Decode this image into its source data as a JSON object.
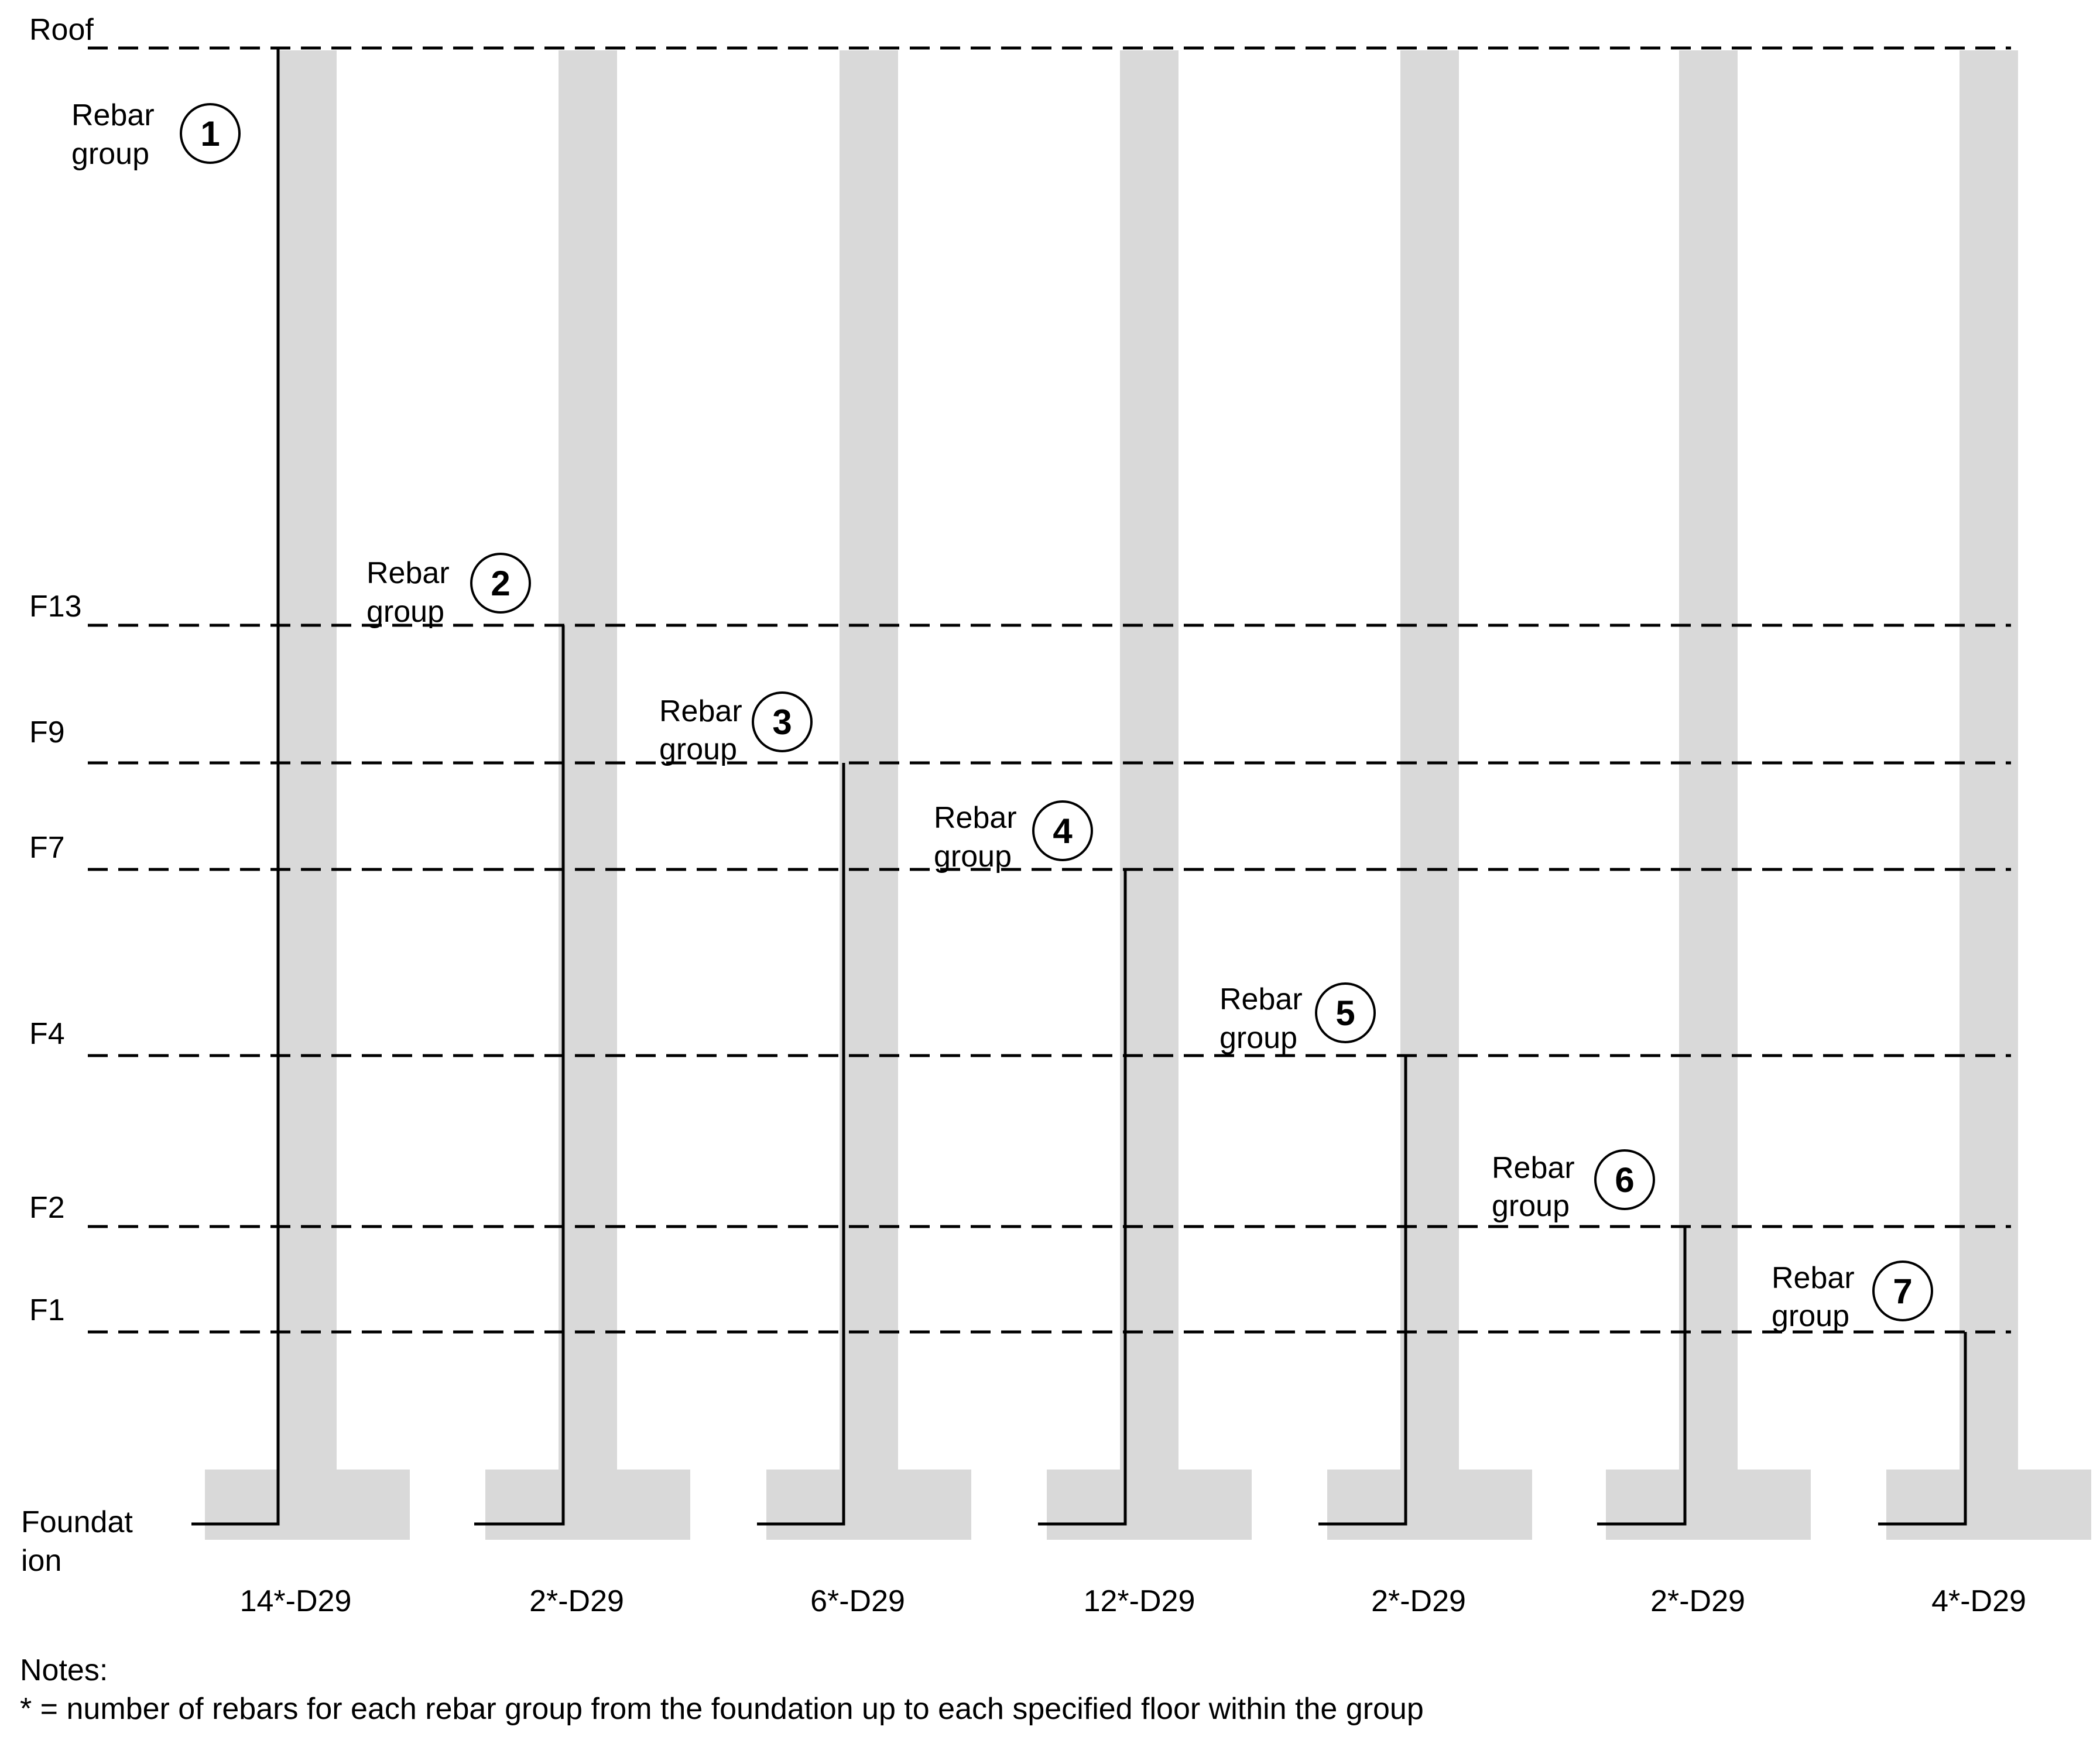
{
  "floors": [
    {
      "id": "roof",
      "label": "Roof"
    },
    {
      "id": "f13",
      "label": "F13"
    },
    {
      "id": "f9",
      "label": "F9"
    },
    {
      "id": "f7",
      "label": "F7"
    },
    {
      "id": "f4",
      "label": "F4"
    },
    {
      "id": "f2",
      "label": "F2"
    },
    {
      "id": "f1",
      "label": "F1"
    }
  ],
  "foundation_label": [
    "Foundat",
    "ion"
  ],
  "groups": [
    {
      "label_line1": "Rebar",
      "label_line2": "group",
      "number": "1",
      "top_floor": "Roof",
      "bottom_label": "14*-D29"
    },
    {
      "label_line1": "Rebar",
      "label_line2": "group",
      "number": "2",
      "top_floor": "F13",
      "bottom_label": "2*-D29"
    },
    {
      "label_line1": "Rebar",
      "label_line2": "group",
      "number": "3",
      "top_floor": "F9",
      "bottom_label": "6*-D29"
    },
    {
      "label_line1": "Rebar",
      "label_line2": "group",
      "number": "4",
      "top_floor": "F7",
      "bottom_label": "12*-D29"
    },
    {
      "label_line1": "Rebar",
      "label_line2": "group",
      "number": "5",
      "top_floor": "F4",
      "bottom_label": "2*-D29"
    },
    {
      "label_line1": "Rebar",
      "label_line2": "group",
      "number": "6",
      "top_floor": "F2",
      "bottom_label": "2*-D29"
    },
    {
      "label_line1": "Rebar",
      "label_line2": "group",
      "number": "7",
      "top_floor": "F1",
      "bottom_label": "4*-D29"
    }
  ],
  "notes": {
    "title": "Notes:",
    "line1": "* = number of rebars for each rebar group from the foundation up to each specified floor within the group"
  },
  "colors": {
    "column_fill": "#d9d9d9",
    "line": "#000000"
  }
}
